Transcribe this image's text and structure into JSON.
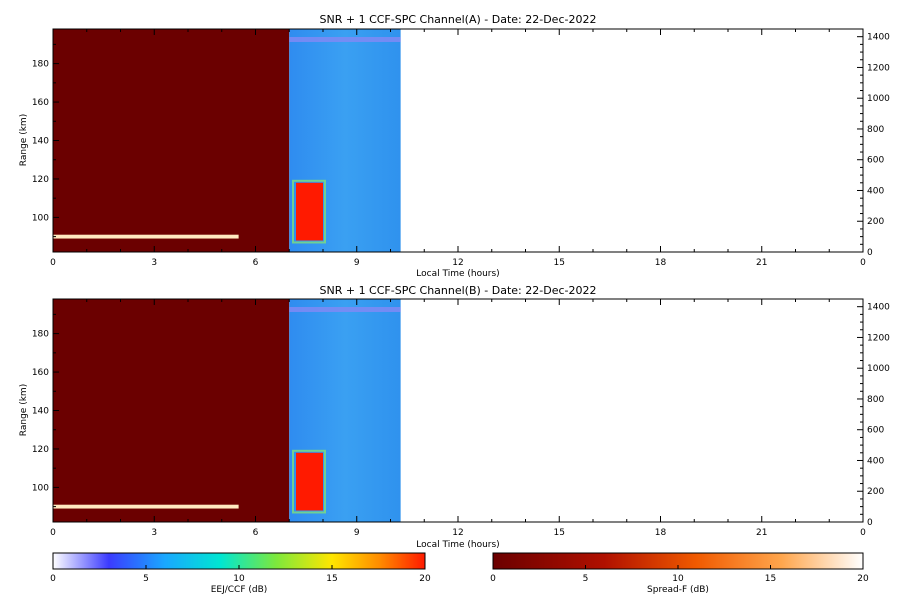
{
  "panels": [
    {
      "title": "SNR + 1 CCF-SPC Channel(A) - Date: 22-Dec-2022",
      "xlabel": "Local Time (hours)",
      "ylabel": "Range (km)"
    },
    {
      "title": "SNR + 1 CCF-SPC Channel(B) - Date: 22-Dec-2022",
      "xlabel": "Local Time (hours)",
      "ylabel": "Range (km)"
    }
  ],
  "colorbars": [
    {
      "label": "EEJ/CCF (dB)",
      "ticks": [
        "0",
        "5",
        "10",
        "15",
        "20"
      ]
    },
    {
      "label": "Spread-F (dB)",
      "ticks": [
        "0",
        "5",
        "10",
        "15",
        "20"
      ]
    }
  ],
  "chart_data": {
    "type": "heatmap",
    "x_axis": {
      "range": [
        0,
        24
      ],
      "ticks": [
        "0",
        "3",
        "6",
        "9",
        "12",
        "15",
        "18",
        "21",
        "0"
      ]
    },
    "y_left_axis": {
      "range": [
        82,
        198
      ],
      "ticks": [
        "100",
        "120",
        "140",
        "160",
        "180"
      ]
    },
    "y_right_axis": {
      "range": [
        0,
        1450
      ],
      "ticks": [
        "0",
        "200",
        "400",
        "600",
        "800",
        "1000",
        "1200",
        "1400"
      ]
    },
    "regions": [
      {
        "name": "Spread-F scale, dark red background",
        "t_start": 0,
        "t_end": 7.0,
        "r_start": 82,
        "r_end": 198,
        "db": 0
      },
      {
        "name": "EEJ/CCF scale, cyan-blue background",
        "t_start": 7.0,
        "t_end": 10.3,
        "r_start": 82,
        "r_end": 198,
        "db": 6
      },
      {
        "name": "strong echo layer",
        "t_start": 7.2,
        "t_end": 8.0,
        "r_start": 88,
        "r_end": 118,
        "db": 20
      },
      {
        "name": "thin echo line near 90 km",
        "t_start": 0,
        "t_end": 5.5,
        "r_start": 89,
        "r_end": 91,
        "db": 21
      }
    ],
    "data_end_hour": 10.3
  }
}
